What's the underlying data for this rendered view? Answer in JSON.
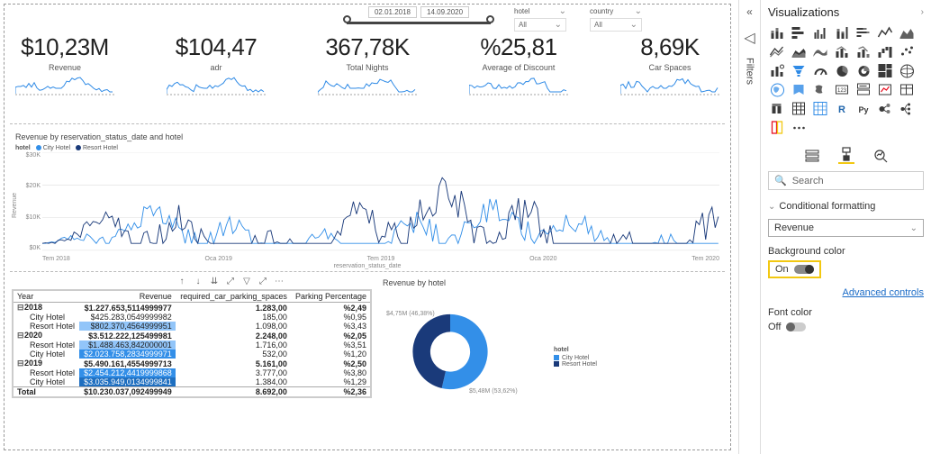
{
  "slicers": {
    "date_from": "02.01.2018",
    "date_to": "14.09.2020",
    "hotel_label": "hotel",
    "hotel_value": "All",
    "country_label": "country",
    "country_value": "All"
  },
  "kpis": [
    {
      "value": "$10,23M",
      "label": "Revenue"
    },
    {
      "value": "$104,47",
      "label": "adr"
    },
    {
      "value": "367,78K",
      "label": "Total Nights"
    },
    {
      "value": "%25,81",
      "label": "Average of Discount"
    },
    {
      "value": "8,69K",
      "label": "Car Spaces"
    }
  ],
  "spark": {
    "color": "#2e8ae6",
    "baseline_color": "#444"
  },
  "mainchart": {
    "title": "Revenue by reservation_status_date and hotel",
    "legend_label_hotel": "hotel",
    "legend_city": "City Hotel",
    "legend_resort": "Resort Hotel",
    "color_city": "#338fe8",
    "color_resort": "#1a3a7a",
    "y_label": "Revenue",
    "y_ticks": [
      "$30K",
      "$20K",
      "$10K",
      "$0K"
    ],
    "x_ticks": [
      "Tem 2018",
      "Oca 2019",
      "Tem 2019",
      "Oca 2020",
      "Tem 2020"
    ],
    "x_label": "reservation_status_date"
  },
  "table": {
    "columns": [
      "Year",
      "Revenue",
      "required_car_parking_spaces",
      "Parking Percentage"
    ],
    "rows": [
      {
        "type": "year",
        "exp": "⊟",
        "cells": [
          "2018",
          "$1.227.653,5114999977",
          "1.283,00",
          "%2,49"
        ]
      },
      {
        "type": "sub",
        "hl": 0,
        "cells": [
          "City Hotel",
          "$425.283,0549999982",
          "185,00",
          "%0,95"
        ]
      },
      {
        "type": "sub",
        "hl": 1,
        "cells": [
          "Resort Hotel",
          "$802.370,4564999951",
          "1.098,00",
          "%3,43"
        ]
      },
      {
        "type": "year",
        "exp": "⊟",
        "cells": [
          "2020",
          "$3.512.222,125499981",
          "2.248,00",
          "%2,05"
        ]
      },
      {
        "type": "sub",
        "hl": 1,
        "cells": [
          "Resort Hotel",
          "$1.488.463,842000001",
          "1.716,00",
          "%3,51"
        ]
      },
      {
        "type": "sub",
        "hl": 2,
        "cells": [
          "City Hotel",
          "$2.023.758,2834999971",
          "532,00",
          "%1,20"
        ]
      },
      {
        "type": "year",
        "exp": "⊟",
        "cells": [
          "2019",
          "$5.490.161,4554999713",
          "5.161,00",
          "%2,50"
        ]
      },
      {
        "type": "sub",
        "hl": 2,
        "cells": [
          "Resort Hotel",
          "$2.454.212,4419999868",
          "3.777,00",
          "%3,80"
        ]
      },
      {
        "type": "sub",
        "hl": 3,
        "cells": [
          "City Hotel",
          "$3.035.949,0134999841",
          "1.384,00",
          "%1,29"
        ]
      },
      {
        "type": "total",
        "cells": [
          "Total",
          "$10.230.037,092499949",
          "8.692,00",
          "%2,36"
        ]
      }
    ]
  },
  "donut": {
    "title": "Revenue by hotel",
    "legend_title": "hotel",
    "series": [
      {
        "name": "City Hotel",
        "value": "$5,48M (53,62%)",
        "pct": 53.62,
        "color": "#338fe8"
      },
      {
        "name": "Resort Hotel",
        "value": "$4,75M (46,38%)",
        "pct": 46.38,
        "color": "#1a3a7a"
      }
    ]
  },
  "rail": {
    "filters": "Filters"
  },
  "pane": {
    "title": "Visualizations",
    "search_placeholder": "Search",
    "section": "Conditional formatting",
    "field": "Revenue",
    "bg_label": "Background color",
    "bg_state": "On",
    "link": "Advanced controls",
    "font_label": "Font color",
    "font_state": "Off",
    "accent": "#f2c811",
    "icon_color": "#3a3a3a",
    "icon_blue": "#2e8ae6"
  }
}
